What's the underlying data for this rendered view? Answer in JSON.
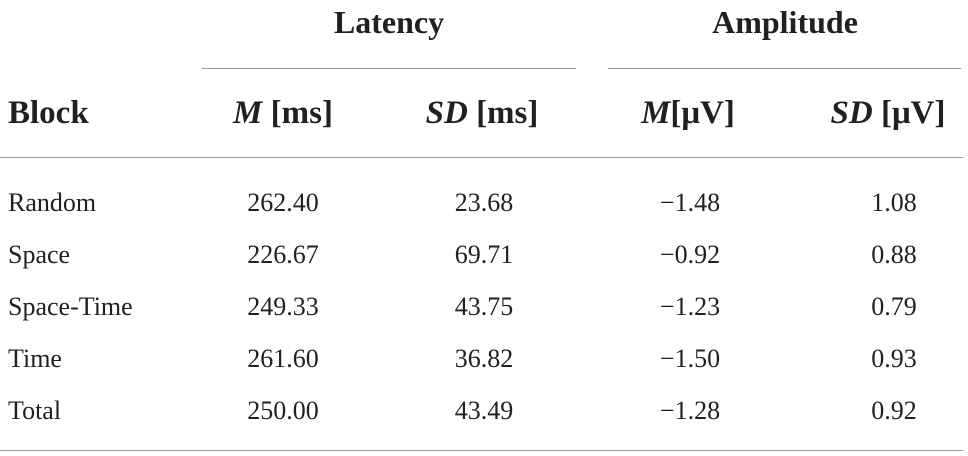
{
  "table": {
    "groups": [
      {
        "label": "Latency"
      },
      {
        "label": "Amplitude"
      }
    ],
    "columns": {
      "block": "Block",
      "lat_m": {
        "sym": "M",
        "unit": " [ms]"
      },
      "lat_sd": {
        "sym": "SD",
        "unit": " [ms]"
      },
      "amp_m": {
        "sym": "M",
        "unit": "[μV]"
      },
      "amp_sd": {
        "sym": "SD",
        "unit": " [μV]"
      }
    },
    "rows": [
      {
        "block": "Random",
        "lat_m": "262.40",
        "lat_sd": "23.68",
        "amp_m": "−1.48",
        "amp_sd": "1.08"
      },
      {
        "block": "Space",
        "lat_m": "226.67",
        "lat_sd": "69.71",
        "amp_m": "−0.92",
        "amp_sd": "0.88"
      },
      {
        "block": "Space-Time",
        "lat_m": "249.33",
        "lat_sd": "43.75",
        "amp_m": "−1.23",
        "amp_sd": "0.79"
      },
      {
        "block": "Time",
        "lat_m": "261.60",
        "lat_sd": "36.82",
        "amp_m": "−1.50",
        "amp_sd": "0.93"
      },
      {
        "block": "Total",
        "lat_m": "250.00",
        "lat_sd": "43.49",
        "amp_m": "−1.28",
        "amp_sd": "0.92"
      }
    ]
  }
}
